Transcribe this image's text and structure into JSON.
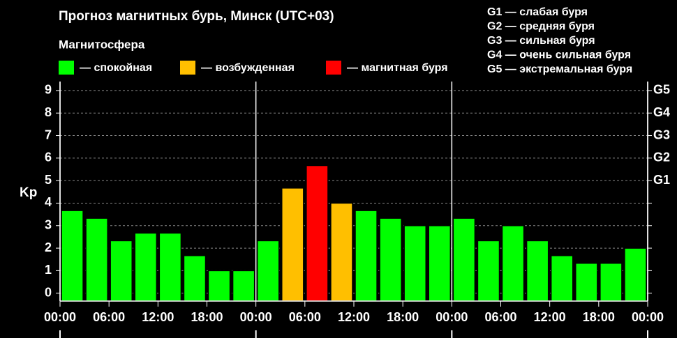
{
  "chart_data": {
    "type": "bar",
    "title": "Прогноз магнитных бурь, Минск (UTC+03)",
    "legend_title": "Магнитосфера",
    "legend": [
      {
        "name": "— спокойная",
        "color": "#00ff00"
      },
      {
        "name": "— возбужденная",
        "color": "#ffbf00"
      },
      {
        "name": "— магнитная буря",
        "color": "#ff0000"
      }
    ],
    "scale_notes": [
      "G1 — слабая буря",
      "G2 — средняя буря",
      "G3 — сильная буря",
      "G4 — очень сильная буря",
      "G5 — экстремальная буря"
    ],
    "y_label": "Kp",
    "values": [
      3.67,
      3.33,
      2.33,
      2.67,
      2.67,
      1.67,
      1.0,
      1.0,
      2.33,
      4.67,
      5.67,
      4.0,
      3.67,
      3.33,
      3.0,
      3.0,
      3.33,
      2.33,
      3.0,
      2.33,
      1.67,
      1.33,
      1.33,
      2.0
    ],
    "colors": [
      "#00ff00",
      "#00ff00",
      "#00ff00",
      "#00ff00",
      "#00ff00",
      "#00ff00",
      "#00ff00",
      "#00ff00",
      "#00ff00",
      "#ffbf00",
      "#ff0000",
      "#ffbf00",
      "#00ff00",
      "#00ff00",
      "#00ff00",
      "#00ff00",
      "#00ff00",
      "#00ff00",
      "#00ff00",
      "#00ff00",
      "#00ff00",
      "#00ff00",
      "#00ff00",
      "#00ff00"
    ],
    "ylim": [
      -0.35,
      9.4
    ],
    "yticks": [
      0,
      1,
      2,
      3,
      4,
      5,
      6,
      7,
      8,
      9
    ],
    "y2lim": [
      -0.35,
      9.4
    ],
    "y2ticks": [
      {
        "value": 5,
        "label": "G1"
      },
      {
        "value": 6,
        "label": "G2"
      },
      {
        "value": 7,
        "label": "G3"
      },
      {
        "value": 8,
        "label": "G4"
      },
      {
        "value": 9,
        "label": "G5"
      }
    ],
    "xlim": [
      0,
      72
    ],
    "xticks": [
      {
        "value": 0,
        "label": "00:00"
      },
      {
        "value": 6,
        "label": "06:00"
      },
      {
        "value": 12,
        "label": "12:00"
      },
      {
        "value": 18,
        "label": "18:00"
      },
      {
        "value": 24,
        "label": "00:00"
      },
      {
        "value": 30,
        "label": "06:00"
      },
      {
        "value": 36,
        "label": "12:00"
      },
      {
        "value": 42,
        "label": "18:00"
      },
      {
        "value": 48,
        "label": "00:00"
      },
      {
        "value": 54,
        "label": "06:00"
      },
      {
        "value": 60,
        "label": "12:00"
      },
      {
        "value": 66,
        "label": "18:00"
      },
      {
        "value": 72,
        "label": "00:00"
      }
    ],
    "grid": true
  }
}
